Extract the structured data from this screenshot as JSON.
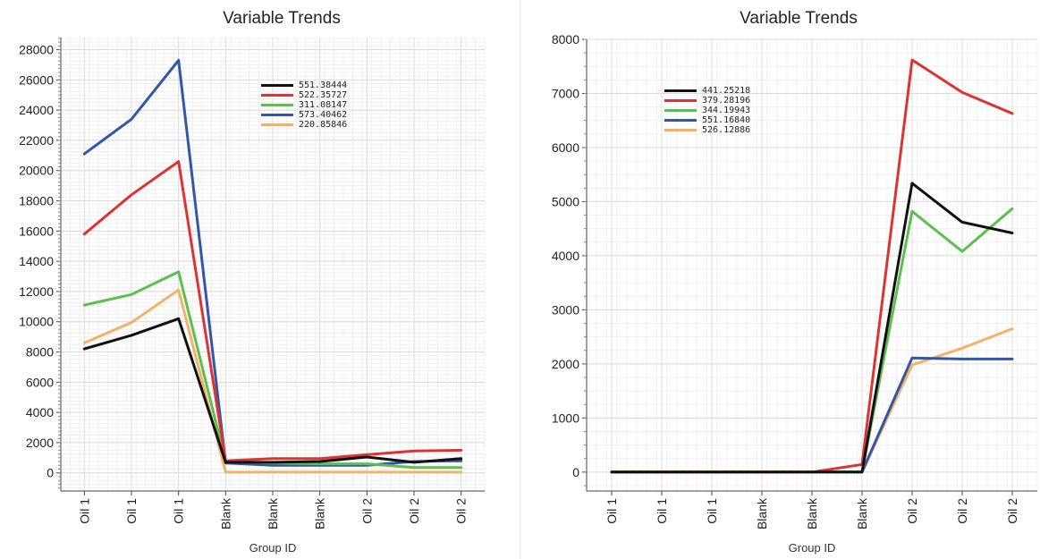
{
  "chart_data": [
    {
      "type": "line",
      "title": "Variable Trends",
      "xlabel": "Group ID",
      "ylabel": "",
      "categories": [
        "Oil 1",
        "Oil 1",
        "Oil 1",
        "Blank",
        "Blank",
        "Blank",
        "Oil 2",
        "Oil 2",
        "Oil 2"
      ],
      "ylim": [
        -1200,
        28800
      ],
      "yticks": [
        0,
        2000,
        4000,
        6000,
        8000,
        10000,
        12000,
        14000,
        16000,
        18000,
        20000,
        22000,
        24000,
        26000,
        28000
      ],
      "grid": true,
      "legend_position": "top-center",
      "series": [
        {
          "name": "551.38444",
          "color": "#111111",
          "values": [
            8200,
            9100,
            10200,
            700,
            700,
            750,
            1050,
            700,
            950
          ]
        },
        {
          "name": "522.35727",
          "color": "#dd3333",
          "values": [
            15800,
            18400,
            20600,
            800,
            950,
            950,
            1200,
            1450,
            1500
          ]
        },
        {
          "name": "311.08147",
          "color": "#5cbf4f",
          "values": [
            11100,
            11800,
            13300,
            750,
            650,
            600,
            600,
            350,
            350
          ]
        },
        {
          "name": "573.40462",
          "color": "#3355aa",
          "values": [
            21100,
            23400,
            27300,
            650,
            500,
            500,
            500,
            750,
            800
          ]
        },
        {
          "name": "220.85846",
          "color": "#f2b26a",
          "values": [
            8600,
            9950,
            12100,
            50,
            50,
            50,
            50,
            50,
            50
          ]
        }
      ]
    },
    {
      "type": "line",
      "title": "Variable Trends",
      "xlabel": "Group ID",
      "ylabel": "",
      "categories": [
        "Oil 1",
        "Oil 1",
        "Oil 1",
        "Blank",
        "Blank",
        "Blank",
        "Oil 2",
        "Oil 2",
        "Oil 2"
      ],
      "ylim": [
        -350,
        8000
      ],
      "yticks": [
        0,
        1000,
        2000,
        3000,
        4000,
        5000,
        6000,
        7000,
        8000
      ],
      "grid": true,
      "legend_position": "top-left",
      "series": [
        {
          "name": "441.25218",
          "color": "#111111",
          "values": [
            0,
            0,
            0,
            0,
            0,
            0,
            5340,
            4620,
            4420
          ]
        },
        {
          "name": "379.28196",
          "color": "#dd3333",
          "values": [
            0,
            0,
            0,
            0,
            0,
            140,
            7620,
            7020,
            6630
          ]
        },
        {
          "name": "344.19943",
          "color": "#5cbf4f",
          "values": [
            0,
            0,
            0,
            0,
            0,
            0,
            4820,
            4080,
            4870
          ]
        },
        {
          "name": "551.16840",
          "color": "#3355aa",
          "values": [
            0,
            0,
            0,
            0,
            0,
            0,
            2110,
            2090,
            2090
          ]
        },
        {
          "name": "526.12886",
          "color": "#f2b26a",
          "values": [
            0,
            0,
            0,
            0,
            0,
            0,
            1980,
            2290,
            2650
          ]
        }
      ]
    }
  ]
}
